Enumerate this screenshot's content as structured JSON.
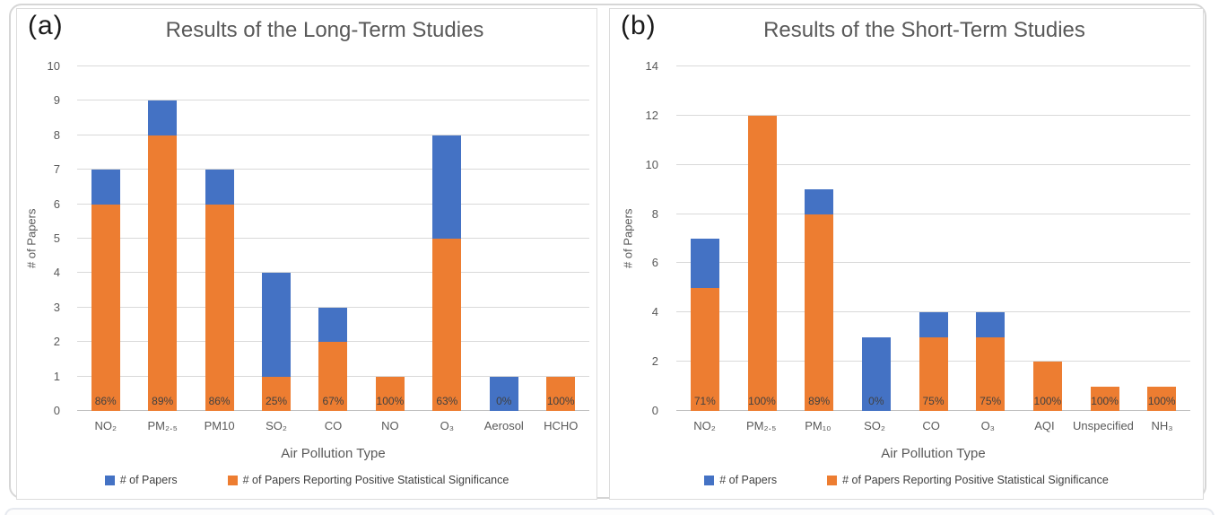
{
  "accent_colors": {
    "papers_blue": "#4472C4",
    "positive_orange": "#ED7D31"
  },
  "chart_data": [
    {
      "type": "bar",
      "corner_label": "(a)",
      "title": "Results of the Long-Term Studies",
      "ylabel": "# of Papers",
      "xlabel": "Air Pollution Type",
      "ylim": [
        0,
        10
      ],
      "yticks": [
        0,
        1,
        2,
        3,
        4,
        5,
        6,
        7,
        8,
        9,
        10
      ],
      "grid": true,
      "legend_position": "bottom",
      "categories": [
        "NO₂",
        "PM₂.₅",
        "PM10",
        "SO₂",
        "CO",
        "NO",
        "O₃",
        "Aerosol",
        "HCHO"
      ],
      "series": [
        {
          "name": "# of Papers",
          "color": "#4472C4",
          "values": [
            7,
            9,
            7,
            4,
            3,
            1,
            8,
            1,
            1
          ]
        },
        {
          "name": "# of Papers Reporting Positive Statistical Significance",
          "color": "#ED7D31",
          "values": [
            6,
            8,
            6,
            1,
            2,
            1,
            5,
            0,
            1
          ]
        }
      ],
      "bar_labels": [
        "86%",
        "89%",
        "86%",
        "25%",
        "67%",
        "100%",
        "63%",
        "0%",
        "100%"
      ]
    },
    {
      "type": "bar",
      "corner_label": "(b)",
      "title": "Results of the Short-Term Studies",
      "ylabel": "# of Papers",
      "xlabel": "Air Pollution Type",
      "ylim": [
        0,
        14
      ],
      "yticks": [
        0,
        2,
        4,
        6,
        8,
        10,
        12,
        14
      ],
      "grid": true,
      "legend_position": "bottom",
      "categories": [
        "NO₂",
        "PM₂.₅",
        "PM₁₀",
        "SO₂",
        "CO",
        "O₃",
        "AQI",
        "Unspecified",
        "NH₃"
      ],
      "series": [
        {
          "name": "# of Papers",
          "color": "#4472C4",
          "values": [
            7,
            12,
            9,
            3,
            4,
            4,
            2,
            1,
            1
          ]
        },
        {
          "name": "# of Papers Reporting Positive Statistical Significance",
          "color": "#ED7D31",
          "values": [
            5,
            12,
            8,
            0,
            3,
            3,
            2,
            1,
            1
          ]
        }
      ],
      "bar_labels": [
        "71%",
        "100%",
        "89%",
        "0%",
        "75%",
        "75%",
        "100%",
        "100%",
        "100%"
      ]
    }
  ]
}
